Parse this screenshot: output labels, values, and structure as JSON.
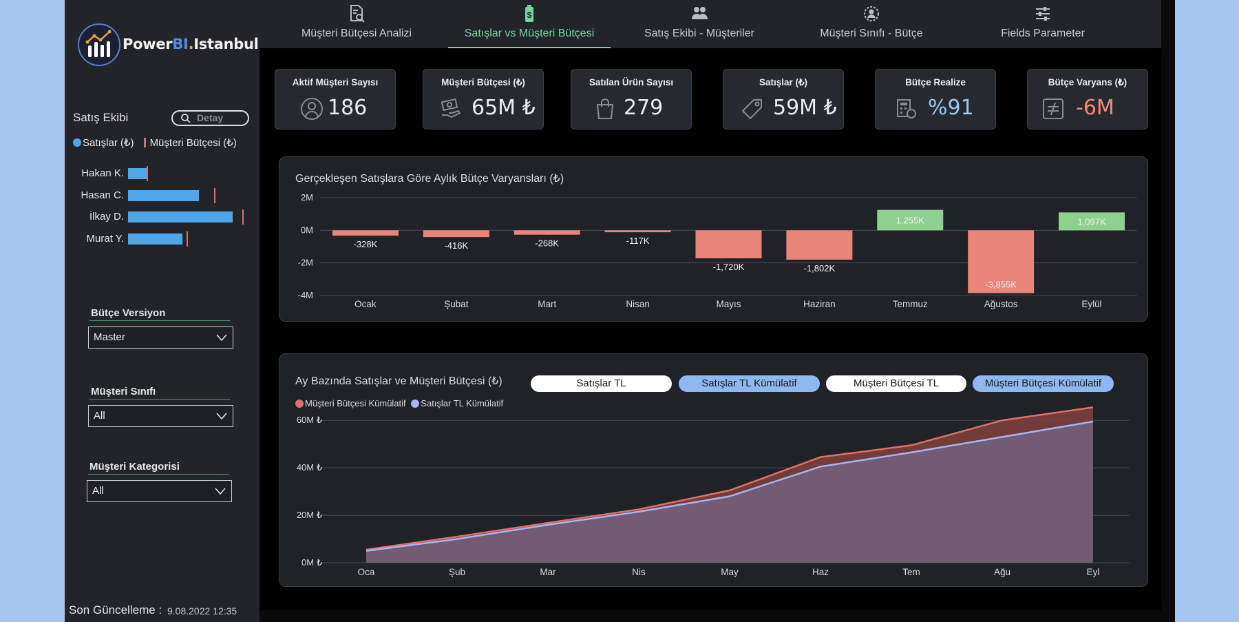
{
  "app": {
    "logo_text_a": "Power",
    "logo_text_b": "BI",
    "logo_text_c": ".",
    "logo_text_d": "Istanbul"
  },
  "tabs": [
    {
      "label": "Müşteri Bütçesi Analizi",
      "icon": "document-search-icon",
      "active": false
    },
    {
      "label": "Satışlar vs Müşteri Bütçesi",
      "icon": "battery-money-icon",
      "active": true
    },
    {
      "label": "Satış Ekibi - Müşteriler",
      "icon": "users-icon",
      "active": false
    },
    {
      "label": "Müşteri Sınıfı - Bütçe",
      "icon": "user-badge-icon",
      "active": false
    },
    {
      "label": "Fields Parameter",
      "icon": "sliders-icon",
      "active": false
    }
  ],
  "sidebar": {
    "sales_team_title": "Satış Ekibi",
    "detail_button": "Detay",
    "legend_sales": "Satışlar (₺)",
    "legend_budget": "Müşteri Bütçesi (₺)",
    "reps": [
      {
        "name": "Hakan K.",
        "sales": 0.19,
        "budget": 0.18
      },
      {
        "name": "Hasan C.",
        "sales": 0.68,
        "budget": 0.82
      },
      {
        "name": "İlkay D.",
        "sales": 1.0,
        "budget": 1.09
      },
      {
        "name": "Murat Y.",
        "sales": 0.52,
        "budget": 0.56
      }
    ],
    "slicers": [
      {
        "label": "Bütçe Versiyon",
        "value": "Master"
      },
      {
        "label": "Müşteri Sınıfı",
        "value": "All"
      },
      {
        "label": "Müşteri Kategorisi",
        "value": "All"
      }
    ],
    "last_update_label": "Son Güncelleme :",
    "last_update_value": "9.08.2022 12:35"
  },
  "kpis": [
    {
      "label": "Aktif Müşteri Sayısı",
      "value": "186",
      "icon": "user-circle-icon",
      "color": "default"
    },
    {
      "label": "Müşteri Bütçesi (₺)",
      "value": "65M ₺",
      "icon": "money-hand-icon",
      "color": "default"
    },
    {
      "label": "Satılan Ürün Sayısı",
      "value": "279",
      "icon": "shopping-bag-icon",
      "color": "default"
    },
    {
      "label": "Satışlar (₺)",
      "value": "59M ₺",
      "icon": "price-tag-icon",
      "color": "default"
    },
    {
      "label": "Bütçe Realize",
      "value": "%91",
      "icon": "calculator-doc-icon",
      "color": "blue"
    },
    {
      "label": "Bütçe Varyans (₺)",
      "value": "-6M",
      "icon": "not-equal-icon",
      "color": "red"
    }
  ],
  "colors": {
    "positive": "#8ed08f",
    "negative": "#e9857b",
    "sales_line": "#a9b4f2",
    "budget_line": "#e07066",
    "active_tab": "#6fd6a0"
  },
  "chart_titles": {
    "variance": "Gerçekleşen Satışlara Göre Aylık Bütçe Varyansları (₺)",
    "cumulative": "Ay Bazında Satışlar ve Müşteri Bütçesi (₺)"
  },
  "toggle_buttons": [
    {
      "label": "Satışlar TL",
      "selected": false
    },
    {
      "label": "Satışlar TL Kümülatif",
      "selected": true
    },
    {
      "label": "Müşteri Bütçesi TL",
      "selected": false
    },
    {
      "label": "Müşteri Bütçesi Kümülatif",
      "selected": true
    }
  ],
  "chart_data": [
    {
      "type": "bar",
      "title": "Gerçekleşen Satışlara Göre Aylık Bütçe Varyansları (₺)",
      "categories": [
        "Ocak",
        "Şubat",
        "Mart",
        "Nisan",
        "Mayıs",
        "Haziran",
        "Temmuz",
        "Ağustos",
        "Eylül"
      ],
      "values": [
        -328,
        -416,
        -268,
        -117,
        -1720,
        -1802,
        1255,
        -3855,
        1097
      ],
      "value_unit": "K",
      "data_labels": [
        "-328K",
        "-416K",
        "-268K",
        "-117K",
        "-1,720K",
        "-1,802K",
        "1,255K",
        "-3,855K",
        "1,097K"
      ],
      "y_ticks": [
        2000,
        0,
        -2000,
        -4000
      ],
      "y_tick_labels": [
        "2M",
        "0M",
        "-2M",
        "-4M"
      ],
      "ylim": [
        -4000,
        2000
      ],
      "grid": true
    },
    {
      "type": "area",
      "title": "Ay Bazında Satışlar ve Müşteri Bütçesi (₺)",
      "categories": [
        "Oca",
        "Şub",
        "Mar",
        "Nis",
        "May",
        "Haz",
        "Tem",
        "Ağu",
        "Eyl"
      ],
      "series": [
        {
          "name": "Müşteri Bütçesi Kümülatif",
          "values": [
            5.5,
            11,
            16.8,
            22.5,
            30.5,
            44.5,
            49.5,
            60,
            65.5
          ]
        },
        {
          "name": "Satışlar TL Kümülatif",
          "values": [
            5,
            10,
            16,
            21.5,
            28,
            40.5,
            46.5,
            53,
            59.5
          ]
        }
      ],
      "y_ticks": [
        0,
        20,
        40,
        60
      ],
      "y_tick_labels": [
        "0M ₺",
        "20M ₺",
        "40M ₺",
        "60M ₺"
      ],
      "ylim": [
        0,
        65
      ],
      "grid": true
    }
  ]
}
